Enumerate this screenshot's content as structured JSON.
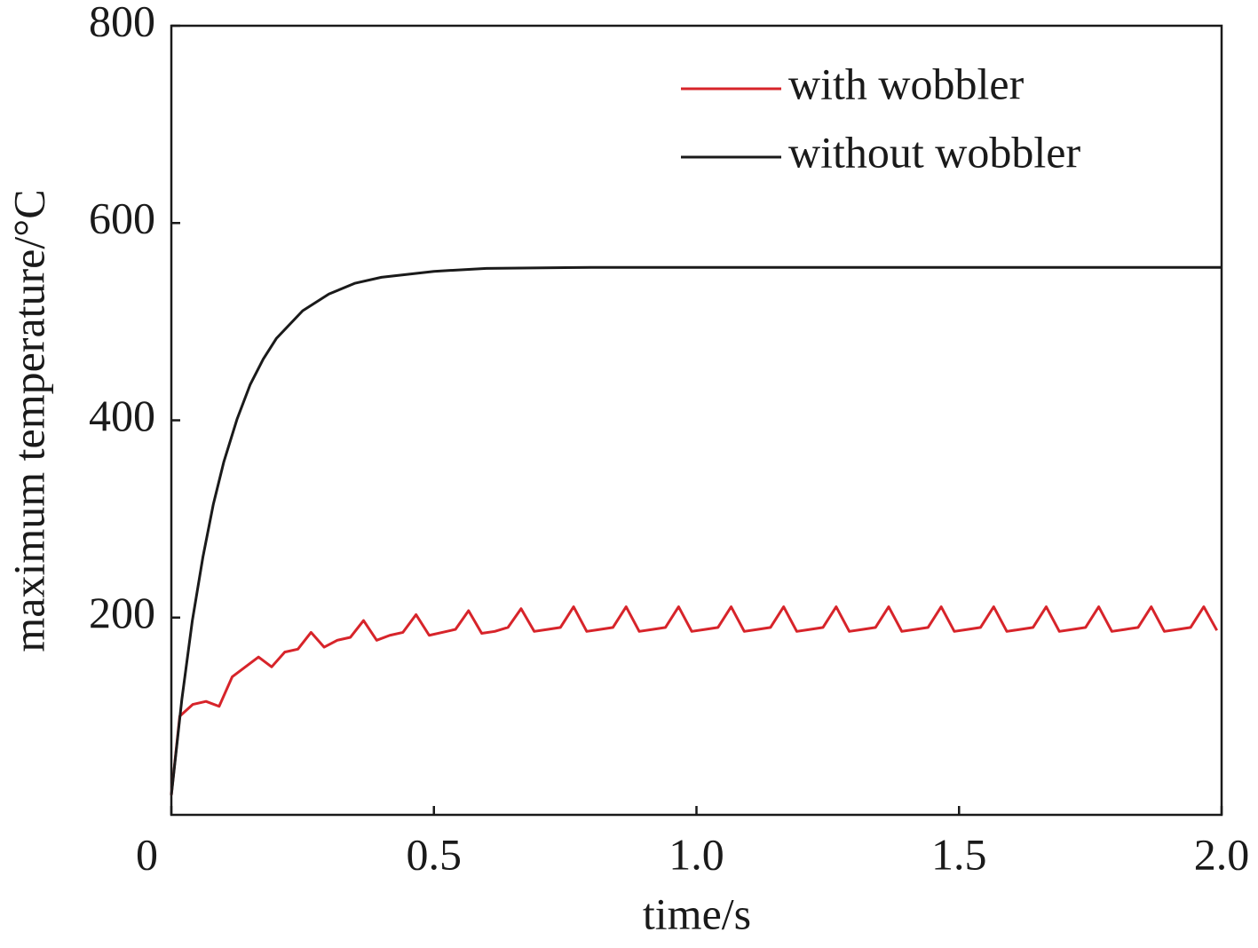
{
  "chart_data": {
    "type": "line",
    "x_label": "time/s",
    "y_label": "maximum temperature/°C",
    "xlim": [
      0,
      2
    ],
    "ylim": [
      0,
      800
    ],
    "xticks": [
      0,
      0.5,
      {
        "value": 1,
        "label": "1.0"
      },
      1.5,
      {
        "value": 2,
        "label": "2.0"
      }
    ],
    "yticks": [
      200,
      400,
      600,
      800
    ],
    "legend": "upper right",
    "series": [
      {
        "name": "with wobbler",
        "color": "#d7242a",
        "x": [
          0,
          0.016,
          0.041,
          0.066,
          0.091,
          0.116,
          0.141,
          0.166,
          0.191,
          0.216,
          0.241,
          0.266,
          0.291,
          0.316,
          0.341,
          0.366,
          0.391,
          0.416,
          0.441,
          0.466,
          0.491,
          0.516,
          0.541,
          0.566,
          0.591,
          0.616,
          0.641,
          0.666,
          0.691,
          0.716,
          0.741,
          0.766,
          0.791,
          0.816,
          0.841,
          0.866,
          0.891,
          0.916,
          0.941,
          0.966,
          0.991,
          1.016,
          1.041,
          1.066,
          1.091,
          1.116,
          1.141,
          1.166,
          1.191,
          1.216,
          1.241,
          1.266,
          1.291,
          1.316,
          1.341,
          1.366,
          1.391,
          1.416,
          1.441,
          1.466,
          1.491,
          1.516,
          1.541,
          1.566,
          1.591,
          1.616,
          1.641,
          1.666,
          1.691,
          1.716,
          1.741,
          1.766,
          1.791,
          1.816,
          1.841,
          1.866,
          1.891,
          1.916,
          1.941,
          1.966,
          1.991
        ],
        "values": [
          20,
          100,
          112,
          115,
          110,
          140,
          150,
          160,
          150,
          165,
          168,
          185,
          170,
          177,
          180,
          197,
          177,
          182,
          185,
          203,
          182,
          185,
          188,
          207,
          184,
          186,
          190,
          209,
          186,
          188,
          190,
          211,
          186,
          188,
          190,
          211,
          186,
          188,
          190,
          211,
          186,
          188,
          190,
          211,
          186,
          188,
          190,
          211,
          186,
          188,
          190,
          211,
          186,
          188,
          190,
          211,
          186,
          188,
          190,
          211,
          186,
          188,
          190,
          211,
          186,
          188,
          190,
          211,
          186,
          188,
          190,
          211,
          186,
          188,
          190,
          211,
          186,
          188,
          190,
          211,
          187
        ]
      },
      {
        "name": "without wobbler",
        "color": "#1a1a1a",
        "x": [
          0,
          0.02,
          0.04,
          0.06,
          0.08,
          0.1,
          0.125,
          0.15,
          0.175,
          0.2,
          0.25,
          0.3,
          0.35,
          0.4,
          0.5,
          0.6,
          0.8,
          1,
          1.5,
          2
        ],
        "values": [
          20,
          117,
          197,
          261,
          315,
          358,
          401,
          436,
          462,
          483,
          511,
          528,
          539,
          545,
          551,
          554,
          555,
          555,
          555,
          555
        ]
      }
    ]
  }
}
